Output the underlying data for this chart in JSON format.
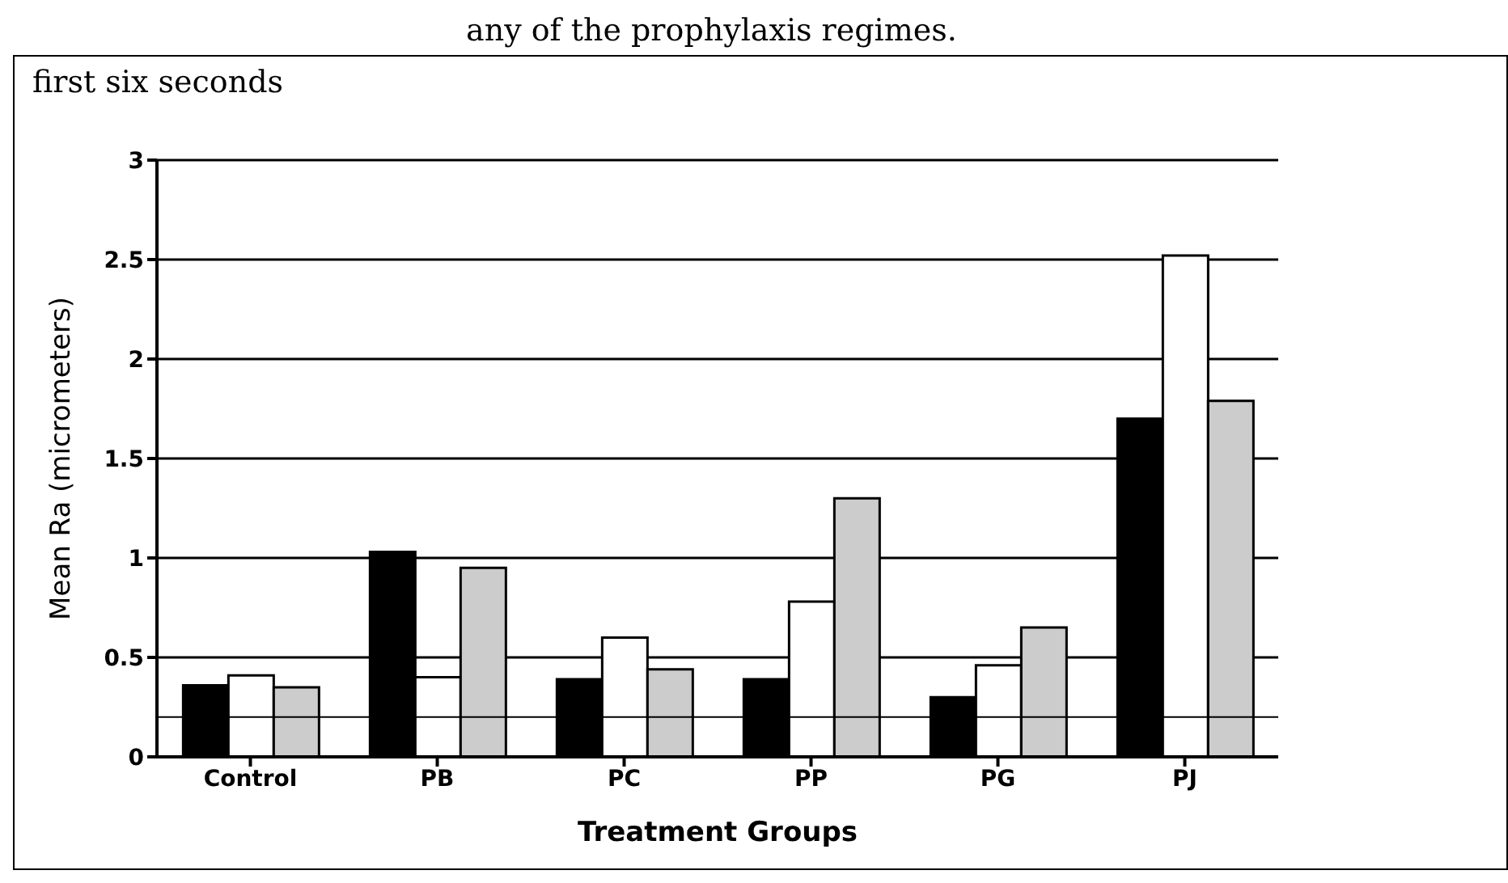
{
  "chart_data": {
    "type": "bar",
    "xlabel": "Treatment Groups",
    "ylabel": "Mean Ra (micrometers)",
    "annotations": [
      "first six seconds",
      "any of the prophylaxis regimes."
    ],
    "categories": [
      "Control",
      "PB",
      "PC",
      "PP",
      "PG",
      "PJ"
    ],
    "series": [
      {
        "color": "#000000",
        "values": [
          0.36,
          1.03,
          0.39,
          0.39,
          0.3,
          1.7
        ]
      },
      {
        "color": "#ffffff",
        "values": [
          0.41,
          0.4,
          0.6,
          0.78,
          0.46,
          2.52
        ]
      },
      {
        "color": "#cccccc",
        "values": [
          0.35,
          0.95,
          0.44,
          1.3,
          0.65,
          1.79
        ]
      }
    ],
    "ylim": [
      0,
      3
    ],
    "yticks": [
      0,
      0.5,
      1,
      1.5,
      2,
      2.5,
      3
    ],
    "grid": "y",
    "ref_lines": [
      {
        "axis": "y",
        "value": 0.2,
        "color": "#000000"
      }
    ]
  }
}
